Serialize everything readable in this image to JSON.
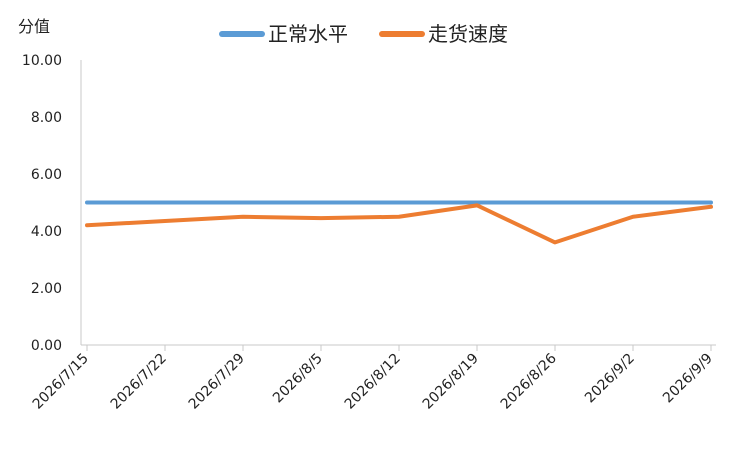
{
  "chart_data": {
    "type": "line",
    "ylabel": "分值",
    "ylim": [
      0,
      10
    ],
    "yticks": [
      "0.00",
      "2.00",
      "4.00",
      "6.00",
      "8.00",
      "10.00"
    ],
    "categories": [
      "2026/7/15",
      "2026/7/22",
      "2026/7/29",
      "2026/8/5",
      "2026/8/12",
      "2026/8/19",
      "2026/8/26",
      "2026/9/2",
      "2026/9/9"
    ],
    "series": [
      {
        "name": "正常水平",
        "color": "#5B9BD5",
        "values": [
          5.0,
          5.0,
          5.0,
          5.0,
          5.0,
          5.0,
          5.0,
          5.0,
          5.0
        ]
      },
      {
        "name": "走货速度",
        "color": "#ED7D31",
        "values": [
          4.2,
          4.35,
          4.5,
          4.45,
          4.5,
          4.9,
          3.6,
          4.5,
          4.85
        ]
      }
    ],
    "legend_position": "top-center",
    "grid": false
  }
}
